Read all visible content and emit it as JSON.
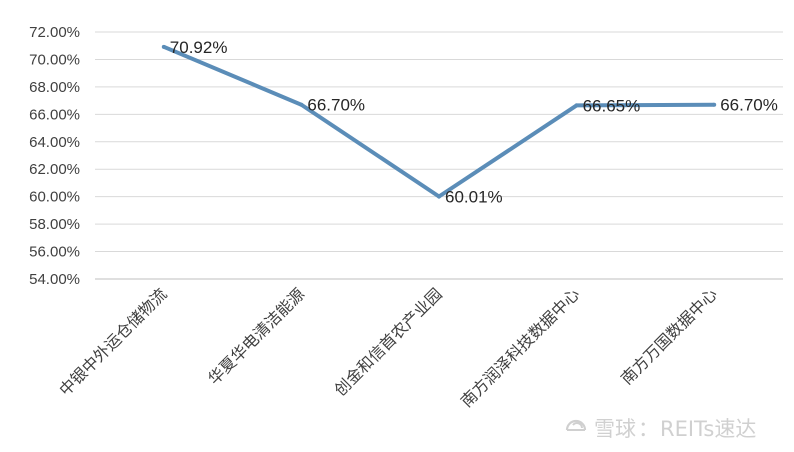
{
  "chart_data": {
    "type": "line",
    "categories": [
      "中银中外运仓储物流",
      "华夏华电清洁能源",
      "创金和信首农产业园",
      "南方润泽科技数据中心",
      "南方万国数据中心"
    ],
    "series": [
      {
        "values": [
          70.92,
          66.7,
          60.01,
          66.65,
          66.7
        ]
      }
    ],
    "data_labels": [
      "70.92%",
      "66.70%",
      "60.01%",
      "66.65%",
      "66.70%"
    ],
    "yticks": [
      "54.00%",
      "56.00%",
      "58.00%",
      "60.00%",
      "62.00%",
      "64.00%",
      "66.00%",
      "68.00%",
      "70.00%",
      "72.00%"
    ],
    "ylim": [
      54,
      72
    ],
    "grid": true,
    "line_color": "#5b8db8"
  },
  "watermark": {
    "brand": "雪球",
    "separator": "：",
    "account": "REITs速达"
  }
}
